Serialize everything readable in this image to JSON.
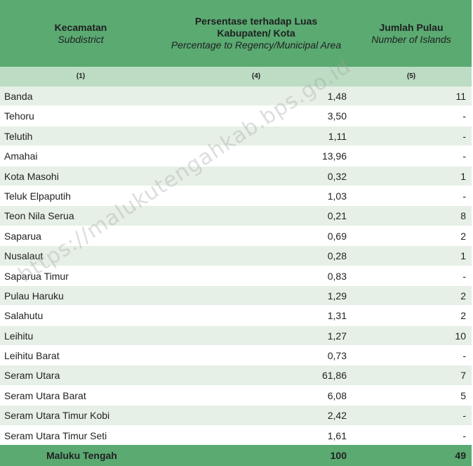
{
  "header": {
    "col1_id": "Kecamatan",
    "col1_en": "Subdistrict",
    "col2_id": "Persentase terhadap Luas Kabupaten/ Kota",
    "col2_en": "Percentage to Regency/Municipal Area",
    "col3_id": "Jumlah Pulau",
    "col3_en": "Number of Islands"
  },
  "col_numbers": [
    "(1)",
    "(4)",
    "(5)"
  ],
  "rows": [
    {
      "name": "Banda",
      "pct": "1,48",
      "islands": "11"
    },
    {
      "name": "Tehoru",
      "pct": "3,50",
      "islands": "-"
    },
    {
      "name": "Telutih",
      "pct": "1,11",
      "islands": "-"
    },
    {
      "name": "Amahai",
      "pct": "13,96",
      "islands": "-"
    },
    {
      "name": "Kota Masohi",
      "pct": "0,32",
      "islands": "1"
    },
    {
      "name": "Teluk Elpaputih",
      "pct": "1,03",
      "islands": "-"
    },
    {
      "name": "Teon Nila Serua",
      "pct": "0,21",
      "islands": "8"
    },
    {
      "name": "Saparua",
      "pct": "0,69",
      "islands": "2"
    },
    {
      "name": "Nusalaut",
      "pct": "0,28",
      "islands": "1"
    },
    {
      "name": "Saparua Timur",
      "pct": "0,83",
      "islands": "-"
    },
    {
      "name": "Pulau Haruku",
      "pct": "1,29",
      "islands": "2"
    },
    {
      "name": "Salahutu",
      "pct": "1,31",
      "islands": "2"
    },
    {
      "name": "Leihitu",
      "pct": "1,27",
      "islands": "10"
    },
    {
      "name": "Leihitu Barat",
      "pct": "0,73",
      "islands": "-"
    },
    {
      "name": "Seram Utara",
      "pct": "61,86",
      "islands": "7"
    },
    {
      "name": "Seram Utara Barat",
      "pct": "6,08",
      "islands": "5"
    },
    {
      "name": "Seram Utara Timur Kobi",
      "pct": "2,42",
      "islands": "-"
    },
    {
      "name": "Seram Utara Timur Seti",
      "pct": "1,61",
      "islands": "-"
    }
  ],
  "total": {
    "name": "Maluku Tengah",
    "pct": "100",
    "islands": "49"
  },
  "watermark": "https://malukutengahkab.bps.go.id",
  "colors": {
    "header_green": "#5aaa72",
    "subheader_green": "#bcdcc4",
    "stripe": "#e6f0e6"
  }
}
